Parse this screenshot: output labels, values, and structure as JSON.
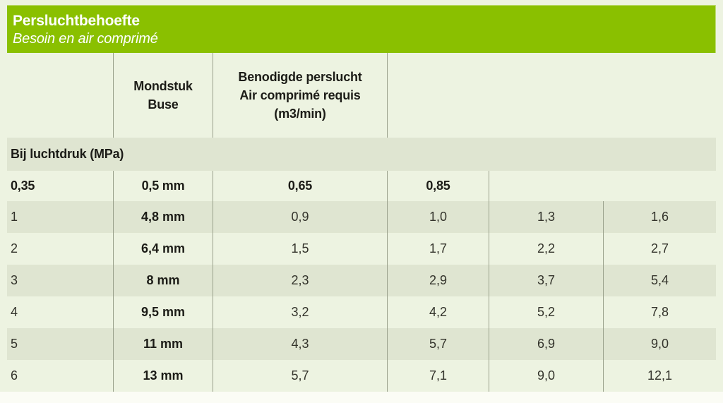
{
  "colors": {
    "header_green": "#8ac000",
    "page_bg": "#edf3e1",
    "row_alt_bg": "#dfe5d1",
    "divider": "#9aa18c",
    "bottom_strip": "#fbfcf5",
    "title_text": "#ffffff"
  },
  "title": {
    "main": "Persluchtbehoefte",
    "sub": "Besoin en air comprimé"
  },
  "table": {
    "header": {
      "nozzle_lines": [
        "Mondstuk",
        "Buse"
      ],
      "air_lines": [
        "Benodigde perslucht",
        "Air comprimé requis",
        "(m3/min)"
      ]
    },
    "section_label": "Bij luchtdruk (MPa)",
    "pressure_row": {
      "pressure": "0,35",
      "nozzle": "0,5 mm",
      "v1": "0,65",
      "v2": "0,85"
    },
    "rows": [
      {
        "pressure": "1",
        "nozzle": "4,8 mm",
        "v1": "0,9",
        "v2": "1,0",
        "v3": "1,3",
        "v4": "1,6"
      },
      {
        "pressure": "2",
        "nozzle": "6,4 mm",
        "v1": "1,5",
        "v2": "1,7",
        "v3": "2,2",
        "v4": "2,7"
      },
      {
        "pressure": "3",
        "nozzle": "8 mm",
        "v1": "2,3",
        "v2": "2,9",
        "v3": "3,7",
        "v4": "5,4"
      },
      {
        "pressure": "4",
        "nozzle": "9,5 mm",
        "v1": "3,2",
        "v2": "4,2",
        "v3": "5,2",
        "v4": "7,8"
      },
      {
        "pressure": "5",
        "nozzle": "11 mm",
        "v1": "4,3",
        "v2": "5,7",
        "v3": "6,9",
        "v4": "9,0"
      },
      {
        "pressure": "6",
        "nozzle": "13 mm",
        "v1": "5,7",
        "v2": "7,1",
        "v3": "9,0",
        "v4": "12,1"
      }
    ]
  }
}
